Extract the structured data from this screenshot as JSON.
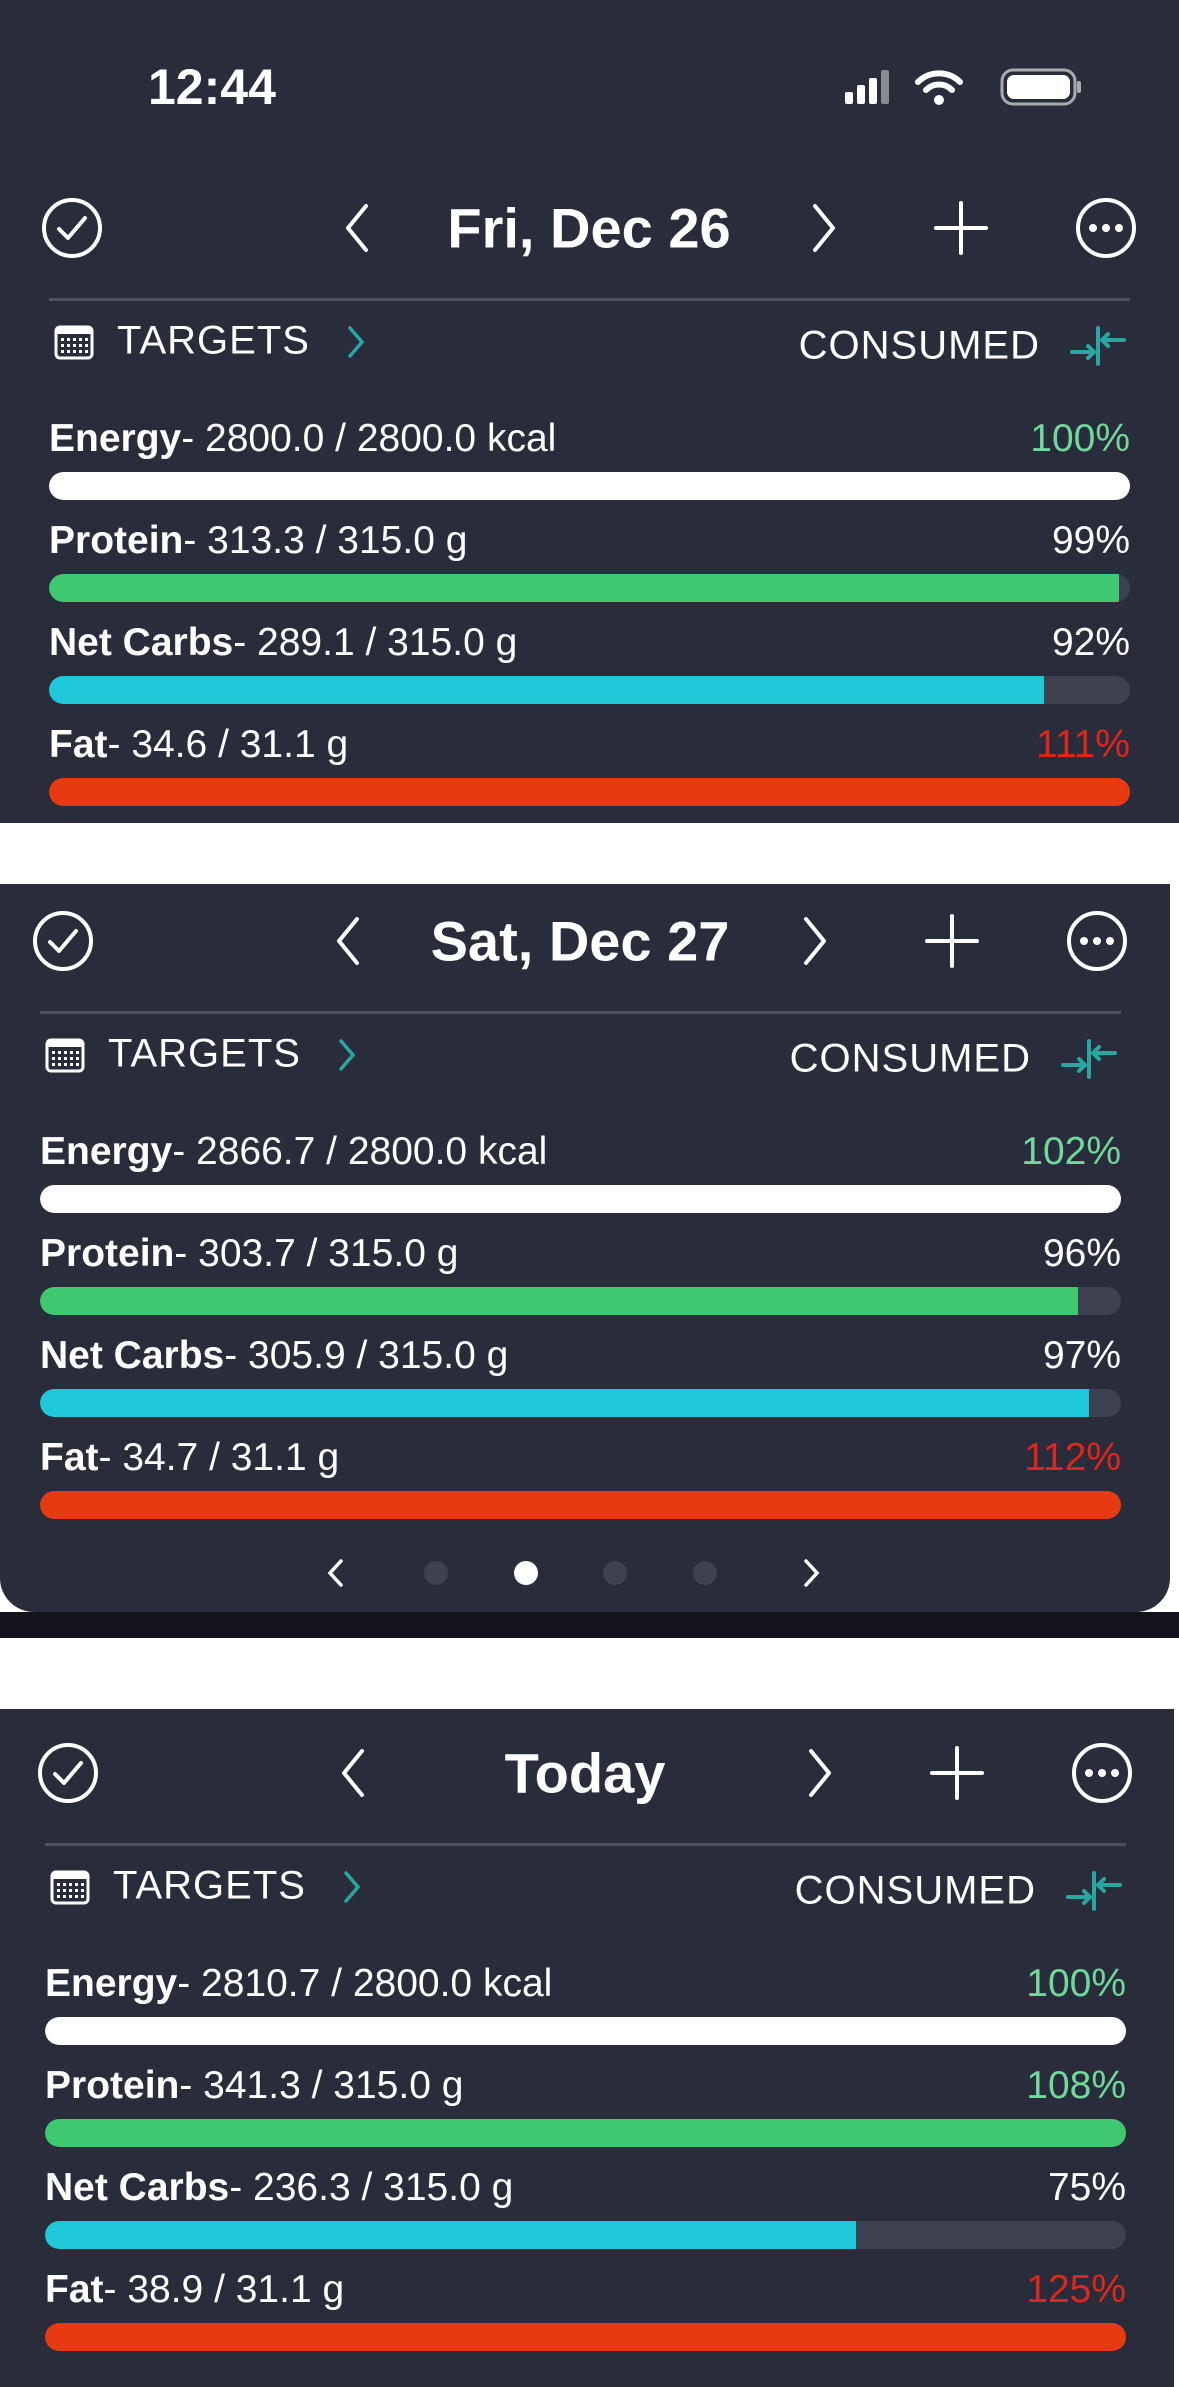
{
  "status_bar": {
    "time": "12:44"
  },
  "panels": [
    {
      "title": "Fri, Dec 26",
      "targets": "TARGETS",
      "consumed": "CONSUMED",
      "rows": [
        {
          "name": "Energy",
          "detail": "- 2800.0 / 2800.0 kcal",
          "percent": 100,
          "percent_label": "100%",
          "color": "#ffffff",
          "percent_color": "#6fd89a"
        },
        {
          "name": "Protein",
          "detail": "- 313.3 / 315.0 g",
          "percent": 99,
          "percent_label": "99%",
          "color": "#3ec870",
          "percent_color": "#ffffff"
        },
        {
          "name": "Net Carbs",
          "detail": "- 289.1 / 315.0 g",
          "percent": 92,
          "percent_label": "92%",
          "color": "#1ec8d8",
          "percent_color": "#ffffff"
        },
        {
          "name": "Fat",
          "detail": "- 34.6 / 31.1 g",
          "percent": 111,
          "percent_label": "111%",
          "color": "#e83a10",
          "percent_color": "#e0261a"
        }
      ]
    },
    {
      "title": "Sat, Dec 27",
      "targets": "TARGETS",
      "consumed": "CONSUMED",
      "rows": [
        {
          "name": "Energy",
          "detail": "- 2866.7 / 2800.0 kcal",
          "percent": 102,
          "percent_label": "102%",
          "color": "#ffffff",
          "percent_color": "#6fd89a"
        },
        {
          "name": "Protein",
          "detail": "- 303.7 / 315.0 g",
          "percent": 96,
          "percent_label": "96%",
          "color": "#3ec870",
          "percent_color": "#ffffff"
        },
        {
          "name": "Net Carbs",
          "detail": "- 305.9 / 315.0 g",
          "percent": 97,
          "percent_label": "97%",
          "color": "#1ec8d8",
          "percent_color": "#ffffff"
        },
        {
          "name": "Fat",
          "detail": "- 34.7 / 31.1 g",
          "percent": 112,
          "percent_label": "112%",
          "color": "#e83a10",
          "percent_color": "#e0261a"
        }
      ]
    },
    {
      "title": "Today",
      "targets": "TARGETS",
      "consumed": "CONSUMED",
      "rows": [
        {
          "name": "Energy",
          "detail": "- 2810.7 / 2800.0 kcal",
          "percent": 100,
          "percent_label": "100%",
          "color": "#ffffff",
          "percent_color": "#6fd89a"
        },
        {
          "name": "Protein",
          "detail": "- 341.3 / 315.0 g",
          "percent": 108,
          "percent_label": "108%",
          "color": "#3ec870",
          "percent_color": "#6fd89a"
        },
        {
          "name": "Net Carbs",
          "detail": "- 236.3 / 315.0 g",
          "percent": 75,
          "percent_label": "75%",
          "color": "#1ec8d8",
          "percent_color": "#ffffff"
        },
        {
          "name": "Fat",
          "detail": "- 38.9 / 31.1 g",
          "percent": 125,
          "percent_label": "125%",
          "color": "#e83a10",
          "percent_color": "#e0261a"
        }
      ]
    }
  ]
}
